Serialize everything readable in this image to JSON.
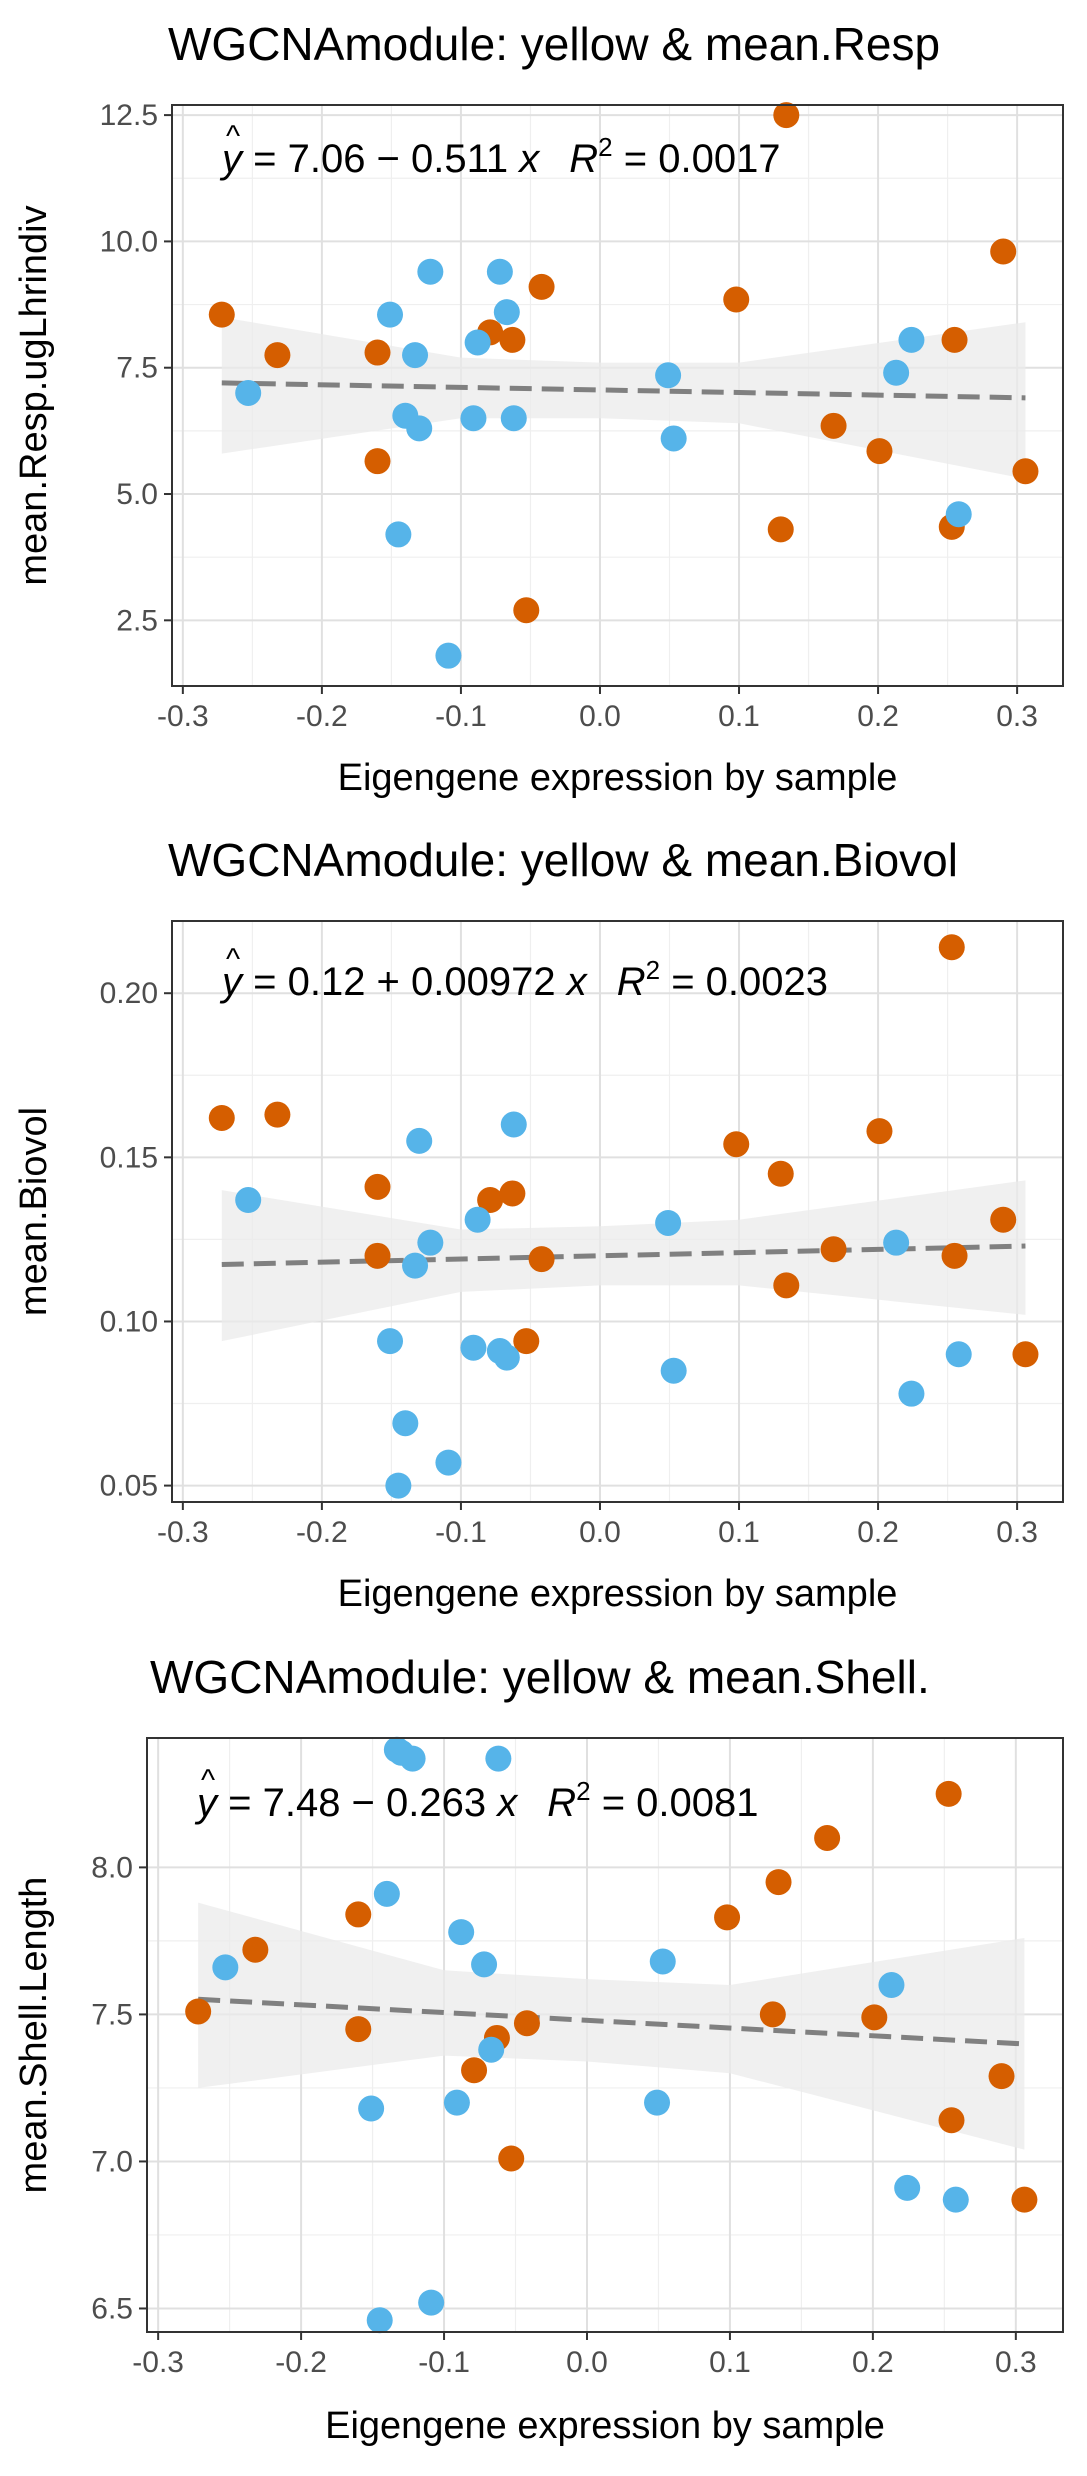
{
  "colors": {
    "orange": "#D55E00",
    "blue": "#56B4E9",
    "grid_major": "#E0E0E0",
    "grid_minor": "#EFEFEF",
    "ribbon": "#EBEBEB",
    "fit_line": "#808080",
    "axis": "#333333",
    "text": "#000000",
    "tick_text": "#4D4D4D"
  },
  "chart_data": [
    {
      "type": "scatter",
      "title": "WGCNAmodule: yellow & mean.Resp",
      "xlabel": "Eigengene expression by sample",
      "ylabel": "mean.Resp.ugLhrindiv",
      "xlim": [
        -0.3,
        0.3
      ],
      "ylim": [
        1.2,
        12.7
      ],
      "x_ticks": [
        -0.3,
        -0.2,
        -0.1,
        0.0,
        0.1,
        0.2,
        0.3
      ],
      "x_tick_labels": [
        "-0.3",
        "-0.2",
        "-0.1",
        "0.0",
        "0.1",
        "0.2",
        "0.3"
      ],
      "y_ticks": [
        2.5,
        5.0,
        7.5,
        10.0,
        12.5
      ],
      "y_tick_labels": [
        "2.5",
        "5.0",
        "7.5",
        "10.0",
        "12.5"
      ],
      "equation": {
        "y": "y",
        "lhs": " = 7.06 − 0.511 ",
        "xvar": "x",
        "r2": "R",
        "r2_value": " = 0.0017"
      },
      "fit": {
        "intercept": 7.06,
        "slope": -0.511,
        "x_range": [
          -0.272,
          0.306
        ],
        "band": [
          [
            -0.272,
            5.8,
            8.5
          ],
          [
            -0.1,
            6.5,
            7.7
          ],
          [
            0.0,
            6.5,
            7.6
          ],
          [
            0.1,
            6.4,
            7.6
          ],
          [
            0.306,
            5.3,
            8.4
          ]
        ]
      },
      "series": [
        {
          "color": "orange",
          "x": [
            -0.272,
            -0.232,
            -0.16,
            -0.16,
            -0.079,
            -0.063,
            -0.042,
            -0.053,
            0.098,
            0.13,
            0.134,
            0.168,
            0.201,
            0.253,
            0.255,
            0.29,
            0.306
          ],
          "y": [
            8.55,
            7.75,
            7.8,
            5.65,
            8.2,
            8.05,
            9.1,
            2.7,
            8.85,
            4.3,
            12.5,
            6.35,
            5.85,
            4.35,
            8.05,
            9.8,
            5.45
          ]
        },
        {
          "color": "blue",
          "x": [
            -0.253,
            -0.151,
            -0.14,
            -0.133,
            -0.13,
            -0.122,
            -0.145,
            -0.109,
            -0.091,
            -0.088,
            -0.072,
            -0.067,
            -0.062,
            0.049,
            0.053,
            0.213,
            0.224,
            0.258
          ],
          "y": [
            7.0,
            8.55,
            6.55,
            7.75,
            6.3,
            9.4,
            4.2,
            1.8,
            6.5,
            8.0,
            9.4,
            8.6,
            6.5,
            7.35,
            6.1,
            7.4,
            8.05,
            4.6
          ]
        }
      ]
    },
    {
      "type": "scatter",
      "title": "WGCNAmodule: yellow & mean.Biovol",
      "xlabel": "Eigengene expression by sample",
      "ylabel": "mean.Biovol",
      "xlim": [
        -0.3,
        0.3
      ],
      "ylim": [
        0.045,
        0.222
      ],
      "x_ticks": [
        -0.3,
        -0.2,
        -0.1,
        0.0,
        0.1,
        0.2,
        0.3
      ],
      "x_tick_labels": [
        "-0.3",
        "-0.2",
        "-0.1",
        "0.0",
        "0.1",
        "0.2",
        "0.3"
      ],
      "y_ticks": [
        0.05,
        0.1,
        0.15,
        0.2
      ],
      "y_tick_labels": [
        "0.05",
        "0.10",
        "0.15",
        "0.20"
      ],
      "equation": {
        "y": "y",
        "lhs": " = 0.12 + 0.00972 ",
        "xvar": "x",
        "r2": "R",
        "r2_value": " = 0.0023"
      },
      "fit": {
        "intercept": 0.12,
        "slope": 0.00972,
        "x_range": [
          -0.272,
          0.306
        ],
        "band": [
          [
            -0.272,
            0.094,
            0.14
          ],
          [
            -0.1,
            0.109,
            0.128
          ],
          [
            0.0,
            0.111,
            0.129
          ],
          [
            0.1,
            0.111,
            0.131
          ],
          [
            0.306,
            0.102,
            0.143
          ]
        ]
      },
      "series": [
        {
          "color": "orange",
          "x": [
            -0.272,
            -0.232,
            -0.16,
            -0.16,
            -0.079,
            -0.063,
            -0.042,
            -0.053,
            0.098,
            0.13,
            0.134,
            0.168,
            0.201,
            0.253,
            0.255,
            0.29,
            0.306
          ],
          "y": [
            0.162,
            0.163,
            0.141,
            0.12,
            0.137,
            0.139,
            0.119,
            0.094,
            0.154,
            0.145,
            0.111,
            0.122,
            0.158,
            0.214,
            0.12,
            0.131,
            0.09
          ]
        },
        {
          "color": "blue",
          "x": [
            -0.253,
            -0.151,
            -0.14,
            -0.133,
            -0.13,
            -0.122,
            -0.145,
            -0.109,
            -0.091,
            -0.088,
            -0.072,
            -0.067,
            -0.062,
            0.049,
            0.053,
            0.213,
            0.224,
            0.258
          ],
          "y": [
            0.137,
            0.094,
            0.069,
            0.117,
            0.155,
            0.124,
            0.05,
            0.057,
            0.092,
            0.131,
            0.091,
            0.089,
            0.16,
            0.13,
            0.085,
            0.124,
            0.078,
            0.09
          ]
        }
      ]
    },
    {
      "type": "scatter",
      "title": "WGCNAmodule: yellow & mean.Shell.",
      "xlabel": "Eigengene expression by sample",
      "ylabel": "mean.Shell.Length",
      "xlim": [
        -0.3,
        0.3
      ],
      "ylim": [
        6.42,
        8.44
      ],
      "x_ticks": [
        -0.3,
        -0.2,
        -0.1,
        0.0,
        0.1,
        0.2,
        0.3
      ],
      "x_tick_labels": [
        "-0.3",
        "-0.2",
        "-0.1",
        "0.0",
        "0.1",
        "0.2",
        "0.3"
      ],
      "y_ticks": [
        6.5,
        7.0,
        7.5,
        8.0
      ],
      "y_tick_labels": [
        "6.5",
        "7.0",
        "7.5",
        "8.0"
      ],
      "equation": {
        "y": "y",
        "lhs": " = 7.48 − 0.263 ",
        "xvar": "x",
        "r2": "R",
        "r2_value": " = 0.0081"
      },
      "fit": {
        "intercept": 7.48,
        "slope": -0.263,
        "x_range": [
          -0.272,
          0.306
        ],
        "band": [
          [
            -0.272,
            7.25,
            7.88
          ],
          [
            -0.1,
            7.36,
            7.65
          ],
          [
            0.0,
            7.34,
            7.62
          ],
          [
            0.1,
            7.3,
            7.6
          ],
          [
            0.306,
            7.04,
            7.76
          ]
        ]
      },
      "series": [
        {
          "color": "orange",
          "x": [
            -0.272,
            -0.232,
            -0.16,
            -0.16,
            -0.079,
            -0.063,
            -0.042,
            -0.053,
            0.098,
            0.13,
            0.134,
            0.168,
            0.201,
            0.253,
            0.255,
            0.29,
            0.306
          ],
          "y": [
            7.51,
            7.72,
            7.84,
            7.45,
            7.31,
            7.42,
            7.47,
            7.01,
            7.83,
            7.5,
            7.95,
            8.1,
            7.49,
            8.25,
            7.14,
            7.29,
            6.87
          ]
        },
        {
          "color": "blue",
          "x": [
            -0.253,
            -0.151,
            -0.14,
            -0.133,
            -0.13,
            -0.122,
            -0.145,
            -0.109,
            -0.091,
            -0.088,
            -0.072,
            -0.067,
            -0.062,
            0.049,
            0.053,
            0.213,
            0.224,
            0.258
          ],
          "y": [
            7.66,
            7.18,
            7.91,
            8.4,
            8.39,
            8.37,
            6.46,
            6.52,
            7.2,
            7.78,
            7.67,
            7.38,
            8.37,
            7.2,
            7.68,
            7.6,
            6.91,
            6.87
          ]
        }
      ]
    }
  ]
}
